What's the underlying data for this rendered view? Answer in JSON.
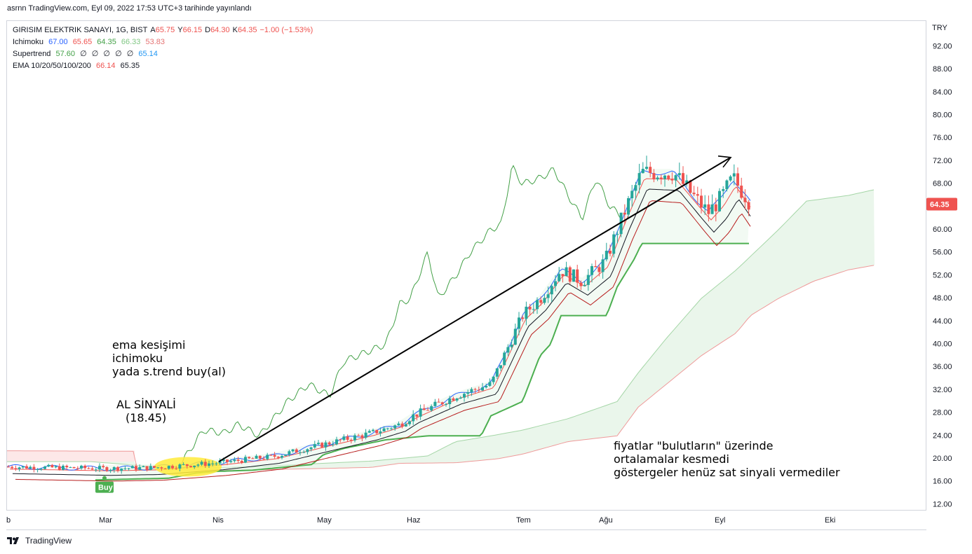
{
  "header": {
    "published_line": "asrnn TradingView.com, Eyl 09, 2022 17:53 UTC+3 tarihinde yayınlandı"
  },
  "legend": {
    "symbol": {
      "name": "GIRISIM ELEKTRIK SANAYI, 1G, BIST",
      "o_label": "A",
      "o": "65.75",
      "h_label": "Y",
      "h": "66.15",
      "l_label": "D",
      "l": "64.30",
      "c_label": "K",
      "c": "64.35",
      "change": "−1.00 (−1.53%)"
    },
    "ichimoku": {
      "name": "Ichimoku",
      "v1": "67.00",
      "v2": "65.65",
      "v3": "64.35",
      "v4": "66.33",
      "v5": "53.83"
    },
    "supertrend": {
      "name": "Supertrend",
      "v1": "57.60",
      "v2": "∅",
      "v3": "∅",
      "v4": "∅",
      "v5": "∅",
      "v6": "∅",
      "v7": "65.14"
    },
    "ema": {
      "name": "EMA 10/20/50/100/200",
      "v1": "66.14",
      "v2": "65.35"
    }
  },
  "price_axis": {
    "currency": "TRY",
    "ticks": [
      "92.00",
      "88.00",
      "84.00",
      "80.00",
      "76.00",
      "72.00",
      "68.00",
      "64.00",
      "60.00",
      "56.00",
      "52.00",
      "48.00",
      "44.00",
      "40.00",
      "36.00",
      "32.00",
      "28.00",
      "24.00",
      "20.00",
      "16.00",
      "12.00"
    ],
    "last_price_label": "64.35"
  },
  "time_axis": {
    "ticks": [
      "b",
      "Mar",
      "Nis",
      "May",
      "Haz",
      "Tem",
      "Ağu",
      "Eyl",
      "Eki"
    ]
  },
  "annotations": {
    "strategy": [
      "ema kesişimi",
      "ichimoku",
      "yada s.trend buy(al)"
    ],
    "signal": [
      "AL SİNYALİ",
      "(18.45)"
    ],
    "comment": [
      "fiyatlar \"bulutların\" üzerinde",
      "ortalamalar kesmedi",
      "göstergeler henüz sat sinyali vermediler"
    ],
    "buy_badge": "Buy"
  },
  "footer": {
    "brand": "TradingView"
  },
  "colors": {
    "up": "#26a69a",
    "down": "#ef5350",
    "supertrend": "#4caf50",
    "cloud_green": "#e8f5e9",
    "cloud_red": "#fde8e8",
    "lagging": "#43a047",
    "ema_fast": "#ef5350",
    "ema_slow": "#131722",
    "kijun": "#b71c1c",
    "tenkan": "#2962ff"
  },
  "chart_data": {
    "type": "candlestick",
    "title": "GIRISIM ELEKTRIK SANAYI, 1G, BIST",
    "ylim": [
      12,
      92
    ],
    "x": [
      "Şub",
      "Mar",
      "Nis",
      "May",
      "Haz",
      "Tem",
      "Ağu",
      "Eyl"
    ],
    "close_path": [
      {
        "t": "Şub",
        "v": 18.6
      },
      {
        "t": "Mar",
        "v": 18.3
      },
      {
        "t": "Mar-mid",
        "v": 18.45
      },
      {
        "t": "Nis",
        "v": 19.3
      },
      {
        "t": "Nis-mid",
        "v": 20.4
      },
      {
        "t": "May",
        "v": 22.5
      },
      {
        "t": "May-mid",
        "v": 24.5
      },
      {
        "t": "Haz",
        "v": 27.5
      },
      {
        "t": "Haz-mid",
        "v": 32
      },
      {
        "t": "Tem",
        "v": 45
      },
      {
        "t": "Tem-mid",
        "v": 52
      },
      {
        "t": "Ağu",
        "v": 63
      },
      {
        "t": "Ağu-mid",
        "v": 70
      },
      {
        "t": "Eyl",
        "v": 65.5
      },
      {
        "t": "Eyl-last",
        "v": 64.35
      }
    ],
    "supertrend": [
      {
        "t": "Mar",
        "v": 16.3
      },
      {
        "t": "Nis",
        "v": 17.5
      },
      {
        "t": "May",
        "v": 20.7
      },
      {
        "t": "Haz",
        "v": 23.5
      },
      {
        "t": "Haz-mid",
        "v": 28
      },
      {
        "t": "Tem",
        "v": 45
      },
      {
        "t": "Ağu",
        "v": 55
      },
      {
        "t": "Eyl",
        "v": 57.6
      }
    ],
    "buy_signal": {
      "t": "Mar",
      "price": 18.45
    },
    "trend_arrow": {
      "from": {
        "t": "Nis",
        "v": 19.5
      },
      "to": {
        "t": "Eyl",
        "v": 72.5
      }
    }
  }
}
